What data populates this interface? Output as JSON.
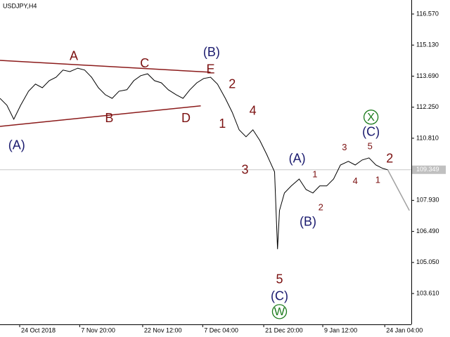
{
  "chart_data": {
    "type": "line",
    "title": "USDJPY,H4",
    "xlim": [
      0,
      418
    ],
    "xticks": [
      {
        "value": 20,
        "label": "24 Oct 2018"
      },
      {
        "value": 81,
        "label": "7 Nov 20:00"
      },
      {
        "value": 145,
        "label": "22 Nov 12:00"
      },
      {
        "value": 206,
        "label": "7 Dec 04:00"
      },
      {
        "value": 268,
        "label": "21 Dec 20:00"
      },
      {
        "value": 328,
        "label": "9 Jan 12:00"
      },
      {
        "value": 391,
        "label": "24 Jan 04:00"
      }
    ],
    "ylim": [
      102.18,
      117.22
    ],
    "yticks": [
      {
        "value": 103.61,
        "label": "103.610"
      },
      {
        "value": 105.05,
        "label": "105.050"
      },
      {
        "value": 106.49,
        "label": "106.490"
      },
      {
        "value": 107.93,
        "label": "107.930"
      },
      {
        "value": 110.81,
        "label": "110.810"
      },
      {
        "value": 112.25,
        "label": "112.250"
      },
      {
        "value": 113.69,
        "label": "113.690"
      },
      {
        "value": 115.13,
        "label": "115.130"
      },
      {
        "value": 116.57,
        "label": "116.570"
      }
    ],
    "last_price": 109.349,
    "series": [
      {
        "color": "#000000",
        "x": [
          0,
          7,
          14,
          21,
          29,
          36,
          43,
          50,
          57,
          64,
          71,
          79,
          86,
          93,
          100,
          107,
          114,
          121,
          129,
          136,
          143,
          150,
          157,
          164,
          171,
          179,
          186,
          193,
          200,
          207,
          214,
          221,
          229,
          236,
          243,
          250,
          257,
          264,
          271,
          279,
          282,
          284,
          289,
          296,
          304,
          311,
          318,
          325,
          332,
          339,
          346,
          354,
          361,
          368,
          375,
          382,
          389,
          394
        ],
        "values": [
          112.66,
          112.34,
          111.69,
          112.34,
          112.99,
          113.32,
          113.15,
          113.48,
          113.64,
          113.97,
          113.9,
          114.06,
          113.97,
          113.64,
          113.15,
          112.83,
          112.66,
          112.99,
          113.06,
          113.48,
          113.71,
          113.8,
          113.48,
          113.38,
          113.06,
          112.83,
          112.66,
          113.06,
          113.38,
          113.58,
          113.64,
          113.32,
          112.66,
          112.01,
          111.2,
          110.88,
          111.2,
          110.71,
          110.06,
          109.25,
          105.67,
          107.46,
          108.27,
          108.6,
          108.92,
          108.43,
          108.27,
          108.6,
          108.6,
          108.92,
          109.57,
          109.74,
          109.57,
          109.8,
          109.9,
          109.57,
          109.41,
          109.35
        ]
      },
      {
        "color": "#a0a0a0",
        "x": [
          394,
          416
        ],
        "values": [
          109.35,
          107.46
        ]
      },
      {
        "color": "#8b1a1a",
        "x": [
          0,
          214
        ],
        "values": [
          114.42,
          113.87
        ]
      },
      {
        "color": "#8b1a1a",
        "x": [
          0,
          204
        ],
        "values": [
          111.36,
          112.31
        ]
      }
    ],
    "annotations": [
      {
        "text": "A",
        "x": 75,
        "y": 114.62,
        "color": "#7b1010",
        "size": "large"
      },
      {
        "text": "C",
        "x": 147,
        "y": 114.29,
        "color": "#7b1010",
        "size": "large"
      },
      {
        "text": "E",
        "x": 214,
        "y": 114.0,
        "color": "#7b1010",
        "size": "large"
      },
      {
        "text": "(B)",
        "x": 215,
        "y": 114.81,
        "color": "#1a1a6e",
        "size": "large"
      },
      {
        "text": "B",
        "x": 111,
        "y": 111.75,
        "color": "#7b1010",
        "size": "large"
      },
      {
        "text": "D",
        "x": 189,
        "y": 111.75,
        "color": "#7b1010",
        "size": "large"
      },
      {
        "text": "(A)",
        "x": 17,
        "y": 110.49,
        "color": "#1a1a6e",
        "size": "large"
      },
      {
        "text": "2",
        "x": 236,
        "y": 113.32,
        "color": "#7b1010",
        "size": "large"
      },
      {
        "text": "1",
        "x": 226,
        "y": 111.49,
        "color": "#7b1010",
        "size": "large"
      },
      {
        "text": "4",
        "x": 257,
        "y": 112.08,
        "color": "#7b1010",
        "size": "large"
      },
      {
        "text": "3",
        "x": 249,
        "y": 109.35,
        "color": "#7b1010",
        "size": "large"
      },
      {
        "text": "5",
        "x": 284,
        "y": 104.27,
        "color": "#7b1010",
        "size": "large"
      },
      {
        "text": "(C)",
        "x": 284,
        "y": 103.49,
        "color": "#1a1a6e",
        "size": "large"
      },
      {
        "text": "W",
        "x": 284,
        "y": 102.77,
        "color": "#1a7a1a",
        "size": "circled"
      },
      {
        "text": "(A)",
        "x": 302,
        "y": 109.87,
        "color": "#1a1a6e",
        "size": "large"
      },
      {
        "text": "1",
        "x": 320,
        "y": 109.15,
        "color": "#7b1010",
        "size": "small"
      },
      {
        "text": "2",
        "x": 326,
        "y": 107.62,
        "color": "#7b1010",
        "size": "small"
      },
      {
        "text": "(B)",
        "x": 313,
        "y": 106.94,
        "color": "#1a1a6e",
        "size": "large"
      },
      {
        "text": "3",
        "x": 350,
        "y": 110.39,
        "color": "#7b1010",
        "size": "small"
      },
      {
        "text": "4",
        "x": 361,
        "y": 108.83,
        "color": "#7b1010",
        "size": "small"
      },
      {
        "text": "5",
        "x": 376,
        "y": 110.45,
        "color": "#7b1010",
        "size": "small"
      },
      {
        "text": "1",
        "x": 384,
        "y": 108.89,
        "color": "#7b1010",
        "size": "small"
      },
      {
        "text": "2",
        "x": 396,
        "y": 109.87,
        "color": "#7b1010",
        "size": "large"
      },
      {
        "text": "(C)",
        "x": 377,
        "y": 111.1,
        "color": "#1a1a6e",
        "size": "large"
      },
      {
        "text": "X",
        "x": 377,
        "y": 111.79,
        "color": "#1a7a1a",
        "size": "circled"
      }
    ]
  }
}
